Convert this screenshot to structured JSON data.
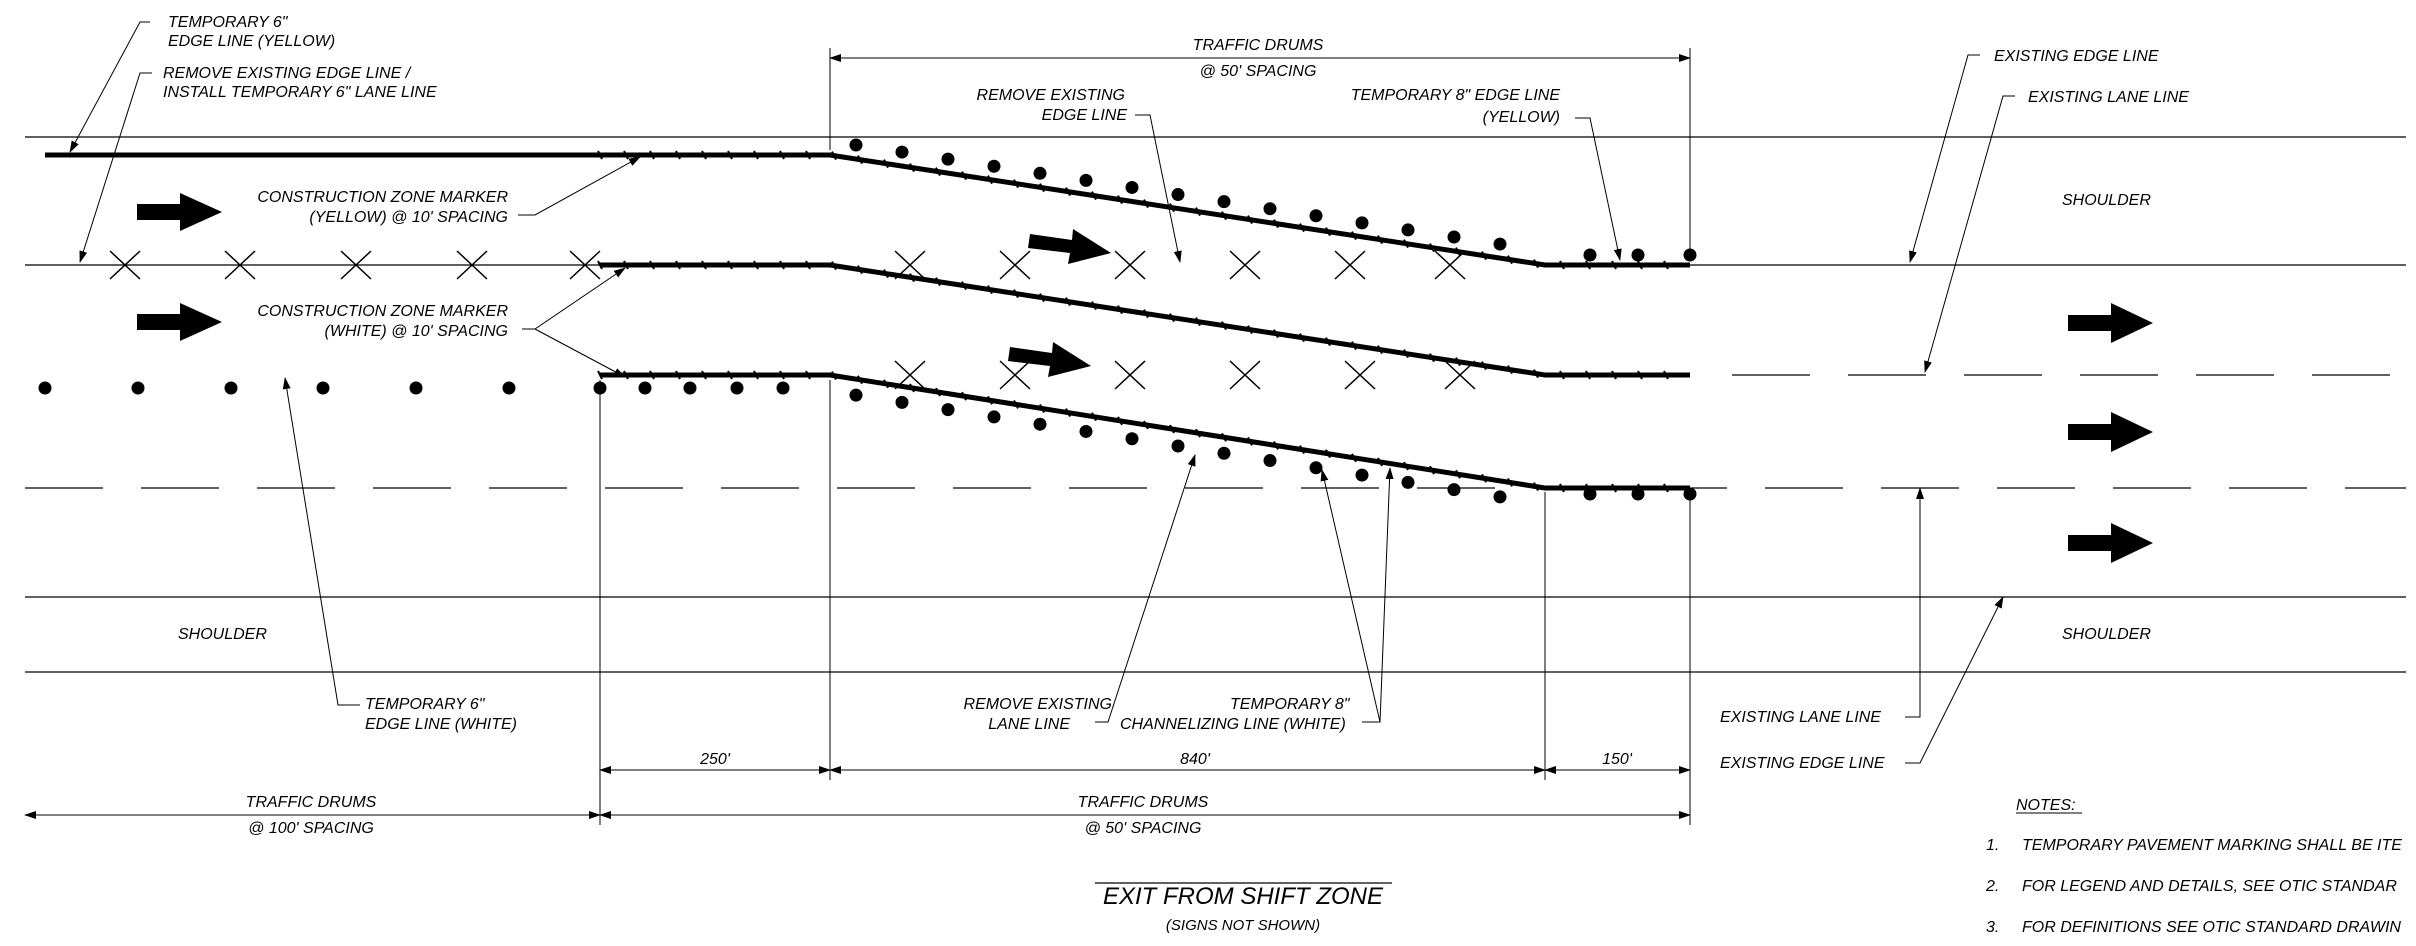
{
  "title": "EXIT FROM SHIFT ZONE",
  "subtitle": "(SIGNS NOT SHOWN)",
  "labels": {
    "temp6_yellow": [
      "TEMPORARY 6\"",
      "EDGE LINE (YELLOW)"
    ],
    "remove_edge_install": [
      "REMOVE EXISTING EDGE LINE /",
      "INSTALL TEMPORARY 6\" LANE LINE"
    ],
    "traffic_drums_top": [
      "TRAFFIC DRUMS",
      "@ 50' SPACING"
    ],
    "remove_existing_edge": [
      "REMOVE EXISTING",
      "EDGE LINE"
    ],
    "temp8_yellow": [
      "TEMPORARY 8\" EDGE LINE",
      "(YELLOW)"
    ],
    "existing_edge_top": "EXISTING EDGE LINE",
    "existing_lane_top": "EXISTING LANE LINE",
    "shoulder_top_right": "SHOULDER",
    "czm_yellow": [
      "CONSTRUCTION ZONE MARKER",
      "(YELLOW) @ 10' SPACING"
    ],
    "czm_white": [
      "CONSTRUCTION ZONE MARKER",
      "(WHITE) @ 10' SPACING"
    ],
    "shoulder_bottom_left": "SHOULDER",
    "shoulder_bottom_right": "SHOULDER",
    "temp6_white": [
      "TEMPORARY 6\"",
      "EDGE LINE (WHITE)"
    ],
    "remove_existing_lane": [
      "REMOVE EXISTING",
      "LANE LINE"
    ],
    "temp8_channel": [
      "TEMPORARY 8\"",
      "CHANNELIZING LINE (WHITE)"
    ],
    "existing_lane_bottom": "EXISTING LANE LINE",
    "existing_edge_bottom": "EXISTING EDGE LINE"
  },
  "dimensions": {
    "d250": "250'",
    "d840": "840'",
    "d150": "150'",
    "drums_100": [
      "TRAFFIC DRUMS",
      "@ 100' SPACING"
    ],
    "drums_50": [
      "TRAFFIC DRUMS",
      "@ 50' SPACING"
    ]
  },
  "notes": {
    "heading": "NOTES:",
    "items": [
      {
        "num": "1.",
        "text": "TEMPORARY PAVEMENT MARKING SHALL BE ITE"
      },
      {
        "num": "2.",
        "text": "FOR LEGEND AND DETAILS, SEE OTIC STANDAR"
      },
      {
        "num": "3.",
        "text": "FOR DEFINITIONS SEE OTIC STANDARD DRAWIN"
      }
    ]
  },
  "colors": {
    "ink": "#000000",
    "background": "#ffffff"
  }
}
